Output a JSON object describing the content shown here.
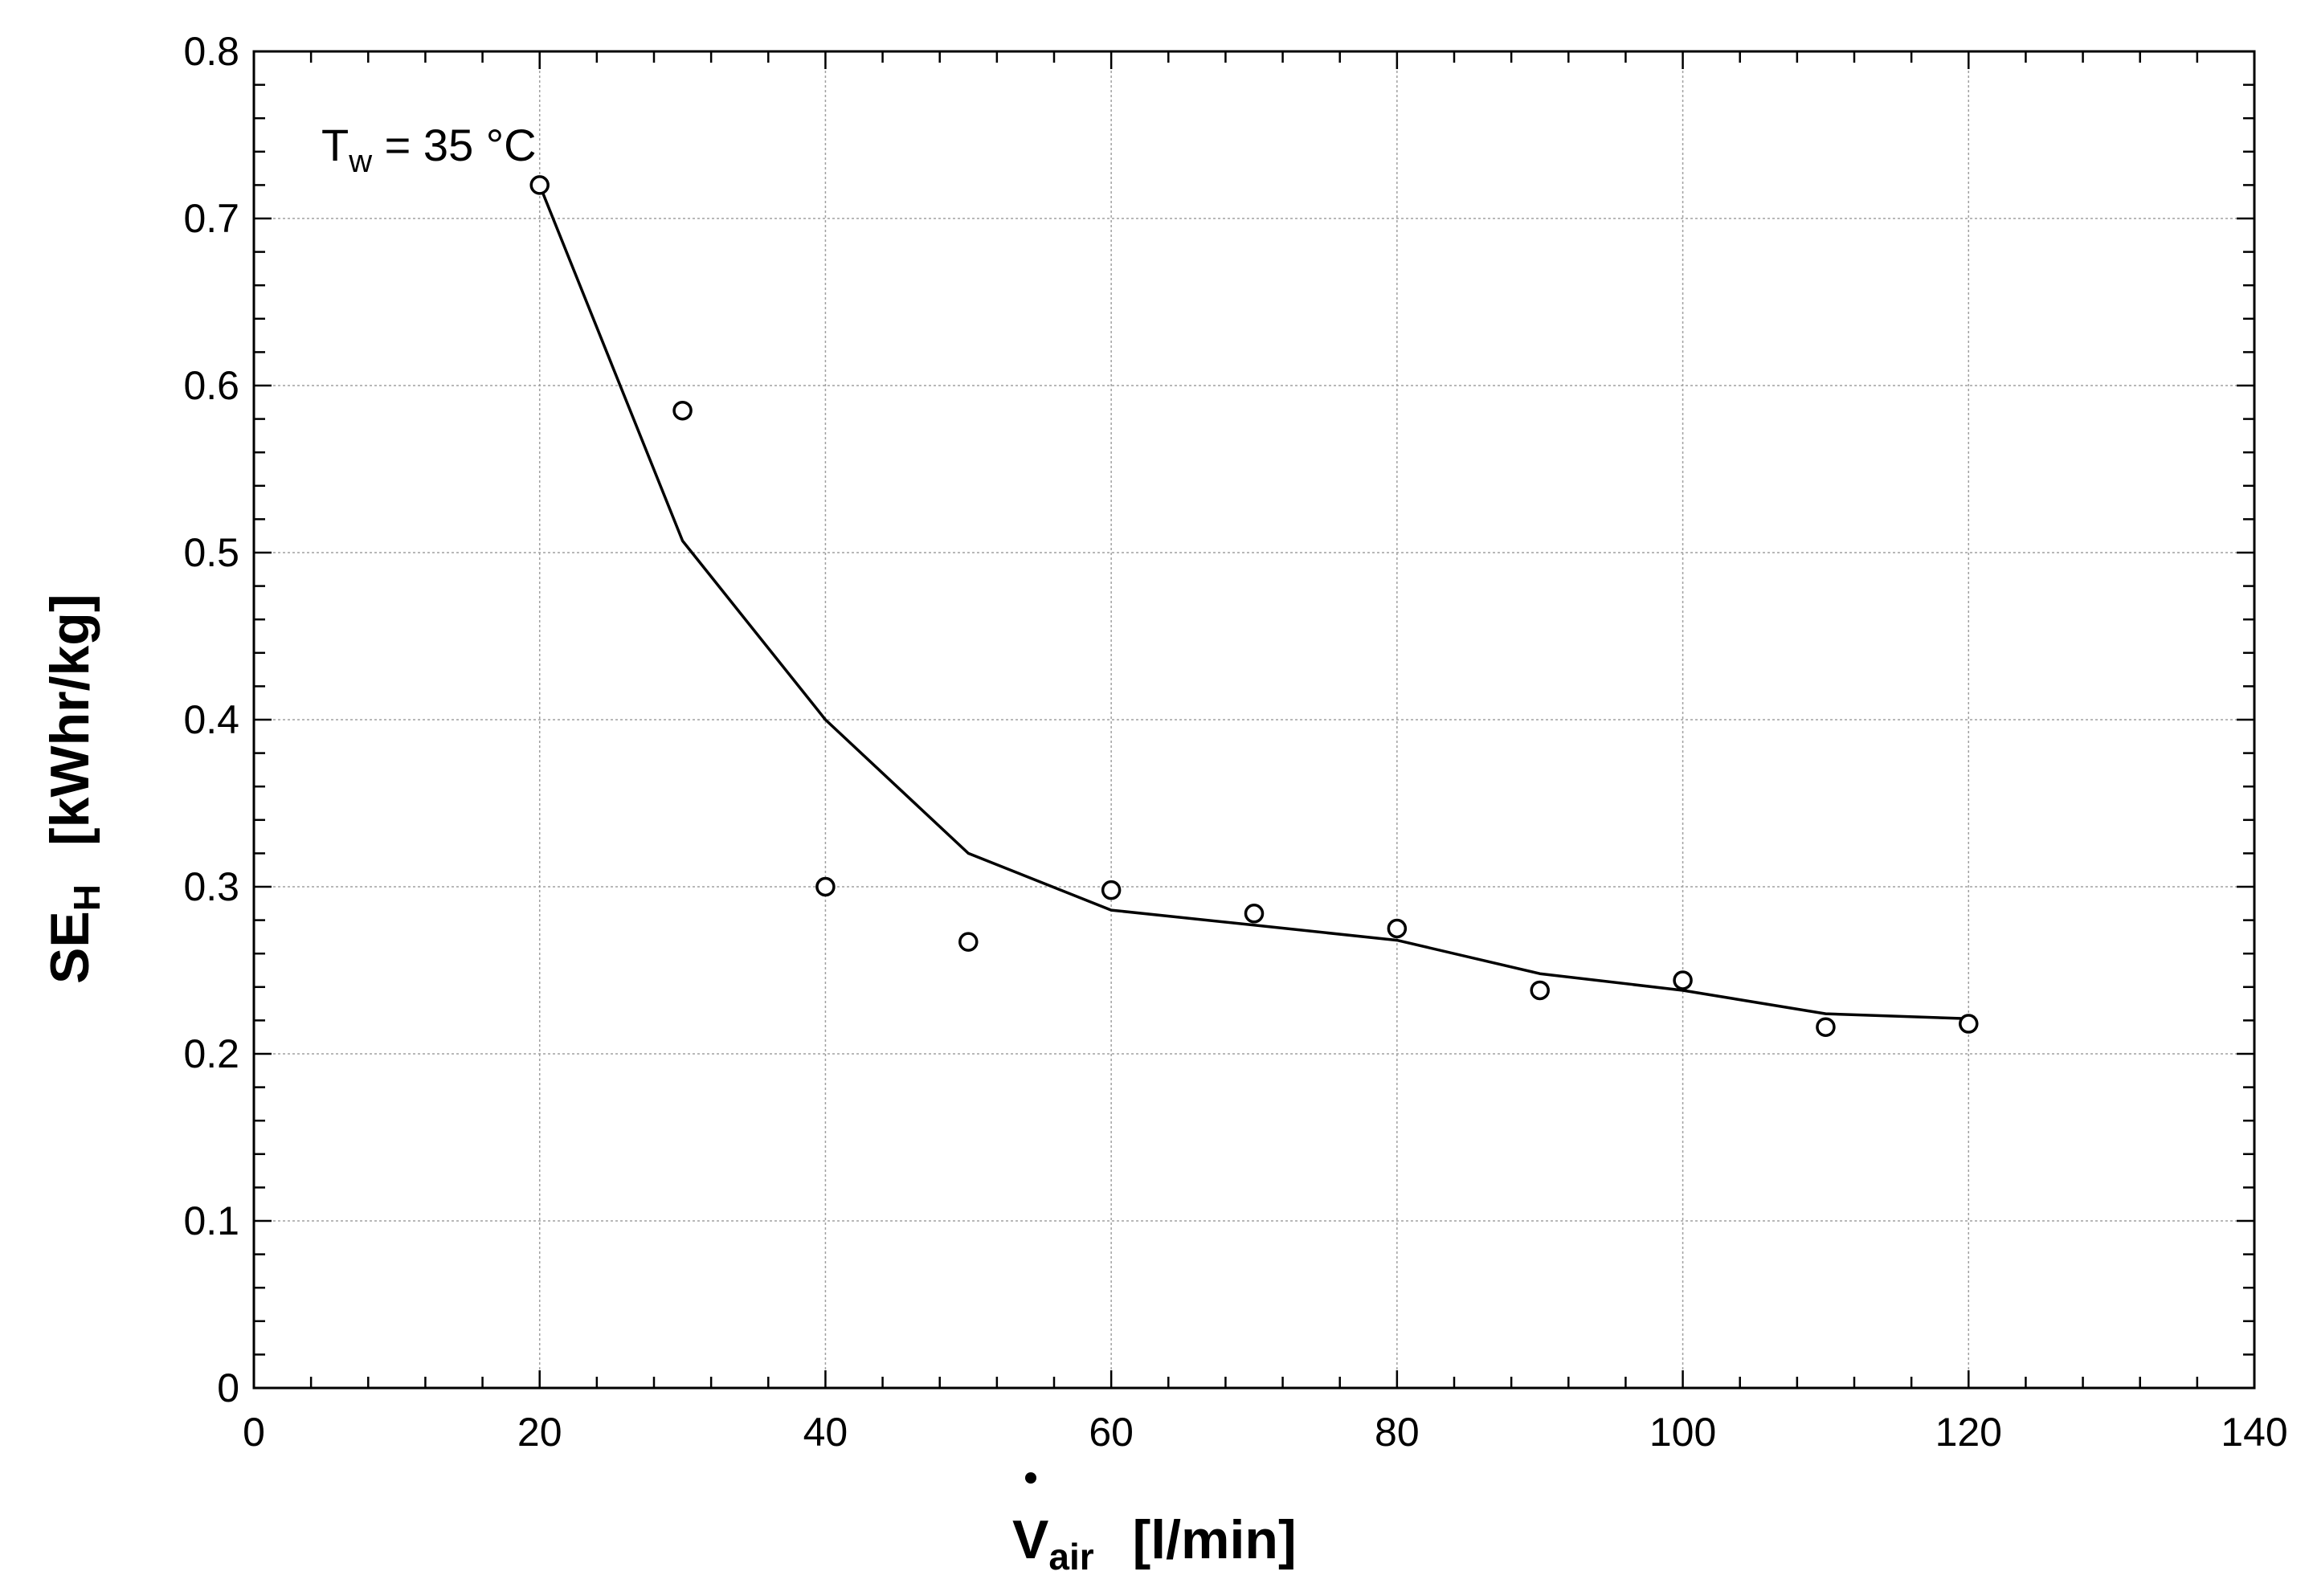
{
  "chart_data": {
    "type": "line",
    "title": "",
    "xlabel": {
      "main": "V",
      "sub": "air",
      "unit": "[l/min]"
    },
    "ylabel": {
      "main": "SE",
      "sub": "H",
      "unit": "[kWhr/kg]"
    },
    "xlim": [
      0,
      140
    ],
    "ylim": [
      0,
      0.8
    ],
    "x_ticks": [
      0,
      20,
      40,
      60,
      80,
      100,
      120,
      140
    ],
    "x_tick_labels": [
      "0",
      "20",
      "40",
      "60",
      "80",
      "100",
      "120",
      "140"
    ],
    "y_ticks": [
      0,
      0.1,
      0.2,
      0.3,
      0.4,
      0.5,
      0.6,
      0.7,
      0.8
    ],
    "y_tick_labels": [
      "0",
      "0.1",
      "0.2",
      "0.3",
      "0.4",
      "0.5",
      "0.6",
      "0.7",
      "0.8"
    ],
    "grid": true,
    "annotation": {
      "main": "T",
      "sub": "w",
      "rest": " = 35 °C"
    },
    "series": [
      {
        "kind": "line",
        "x": [
          20,
          30,
          40,
          50,
          60,
          70,
          80,
          90,
          100,
          110,
          120
        ],
        "y": [
          0.72,
          0.507,
          0.4,
          0.32,
          0.286,
          0.277,
          0.268,
          0.248,
          0.238,
          0.224,
          0.221
        ]
      },
      {
        "kind": "scatter",
        "marker": "open-circle",
        "x": [
          20,
          30,
          40,
          50,
          60,
          70,
          80,
          90,
          100,
          110,
          120
        ],
        "y": [
          0.72,
          0.585,
          0.3,
          0.267,
          0.298,
          0.284,
          0.275,
          0.238,
          0.244,
          0.216,
          0.218
        ]
      }
    ],
    "colors": {
      "line": "#000000",
      "marker": "#000000",
      "grid": "#a0a0a0",
      "background": "#ffffff"
    }
  }
}
